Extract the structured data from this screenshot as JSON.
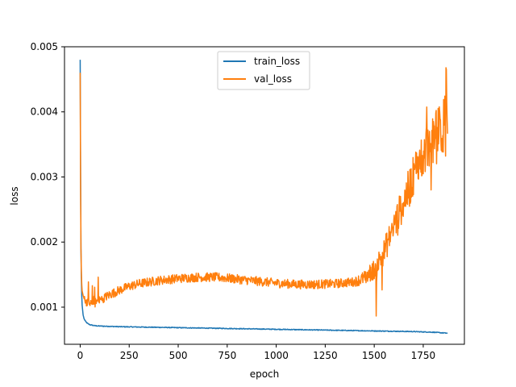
{
  "chart_data": {
    "type": "line",
    "title": "",
    "xlabel": "epoch",
    "ylabel": "loss",
    "xlim": [
      -80,
      1960
    ],
    "ylim": [
      0.00043,
      0.005
    ],
    "xticks": [
      0,
      250,
      500,
      750,
      1000,
      1250,
      1500,
      1750
    ],
    "xtick_labels": [
      "0",
      "250",
      "500",
      "750",
      "1000",
      "1250",
      "1500",
      "1750"
    ],
    "yticks": [
      0.001,
      0.002,
      0.003,
      0.004,
      0.005
    ],
    "ytick_labels": [
      "0.001",
      "0.002",
      "0.003",
      "0.004",
      "0.005"
    ],
    "grid": false,
    "legend_position": "top-center",
    "series": [
      {
        "name": "train_loss",
        "color": "#1f77b4",
        "x": [
          0,
          2,
          4,
          6,
          8,
          10,
          15,
          20,
          30,
          40,
          50,
          75,
          100,
          150,
          200,
          300,
          400,
          500,
          600,
          700,
          800,
          900,
          1000,
          1100,
          1200,
          1300,
          1400,
          1500,
          1600,
          1700,
          1800,
          1875
        ],
        "y": [
          0.0048,
          0.0031,
          0.0019,
          0.00145,
          0.00118,
          0.00103,
          0.00088,
          0.00082,
          0.00077,
          0.000745,
          0.00073,
          0.000715,
          0.00071,
          0.000705,
          0.0007,
          0.000695,
          0.00069,
          0.000685,
          0.00068,
          0.000675,
          0.00067,
          0.000665,
          0.00066,
          0.000655,
          0.00065,
          0.000645,
          0.00064,
          0.000635,
          0.00063,
          0.000625,
          0.000615,
          0.0006
        ]
      },
      {
        "name": "val_loss",
        "color": "#ff7f0e",
        "x": [
          0,
          2,
          4,
          6,
          8,
          10,
          15,
          20,
          30,
          40,
          50,
          75,
          100,
          150,
          200,
          250,
          300,
          400,
          500,
          600,
          700,
          800,
          900,
          1000,
          1100,
          1200,
          1300,
          1400,
          1450,
          1500,
          1550,
          1600,
          1650,
          1700,
          1750,
          1800,
          1850,
          1875
        ],
        "y": [
          0.0046,
          0.0029,
          0.0019,
          0.00155,
          0.00135,
          0.00125,
          0.00118,
          0.00113,
          0.00109,
          0.00105,
          0.00103,
          0.00107,
          0.00111,
          0.00119,
          0.00126,
          0.00132,
          0.00136,
          0.00141,
          0.00144,
          0.00146,
          0.00146,
          0.00143,
          0.0014,
          0.00137,
          0.00135,
          0.00135,
          0.00136,
          0.00139,
          0.00145,
          0.00158,
          0.00185,
          0.00225,
          0.00262,
          0.003,
          0.00335,
          0.00355,
          0.00375,
          0.00395
        ]
      }
    ]
  }
}
